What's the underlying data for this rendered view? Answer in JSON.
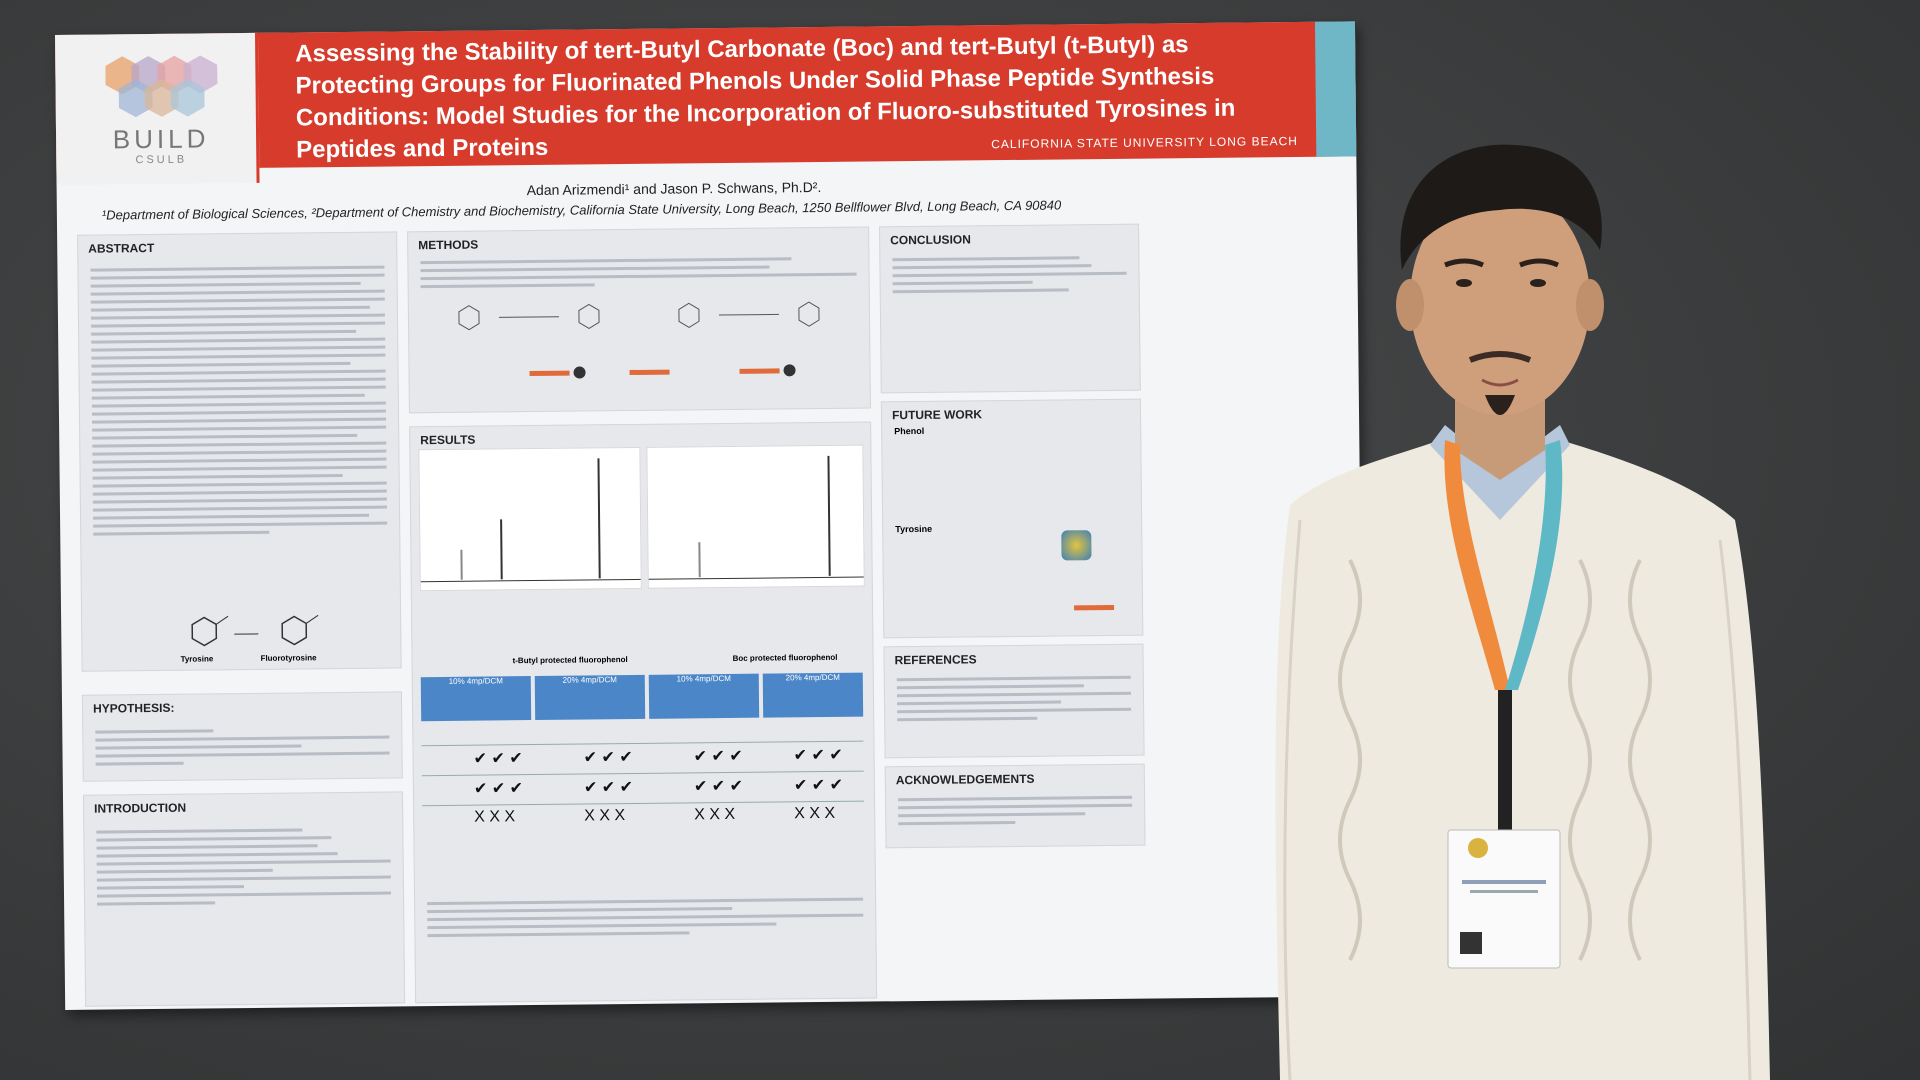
{
  "poster": {
    "title": "Assessing the Stability of tert-Butyl Carbonate (Boc) and tert-Butyl (t-Butyl) as Protecting Groups for Fluorinated Phenols Under Solid Phase Peptide Synthesis Conditions: Model Studies for the Incorporation of Fluoro-substituted Tyrosines in Peptides and Proteins",
    "logo": "BUILD",
    "logo_sub": "CSULB",
    "university": "CALIFORNIA STATE UNIVERSITY LONG BEACH",
    "authors": "Adan Arizmendi¹ and Jason P. Schwans, Ph.D².",
    "affiliation": "¹Department of Biological Sciences, ²Department of Chemistry and Biochemistry, California State University, Long Beach, 1250 Bellflower Blvd, Long Beach, CA 90840",
    "sections": {
      "abstract": "ABSTRACT",
      "hypothesis": "HYPOTHESIS:",
      "introduction": "INTRODUCTION",
      "methods": "METHODS",
      "results": "RESULTS",
      "conclusion": "CONCLUSION",
      "future_work": "FUTURE WORK",
      "references": "REFERENCES",
      "acknowledgements": "ACKNOWLEDGEMENTS"
    },
    "labels": {
      "tyrosine": "Tyrosine",
      "fluorotyrosine": "Fluorotyrosine",
      "tbutyl_phenol": "t-Butyl protected fluorophenol",
      "boc_phenol": "Boc protected fluorophenol",
      "phenol": "Phenol",
      "tyrosine_fw": "Tyrosine"
    },
    "table_headers": [
      "10% 4mp/DCM",
      "20% 4mp/DCM",
      "10% 4mp/DCM",
      "20% 4mp/DCM"
    ]
  },
  "colors": {
    "banner": "#d63b2c",
    "accent_teal": "#6fb7c7",
    "table_header": "#4a86c8",
    "lanyard_orange": "#f08a3c",
    "lanyard_teal": "#5fb8c6",
    "sweater": "#eeeadf"
  }
}
